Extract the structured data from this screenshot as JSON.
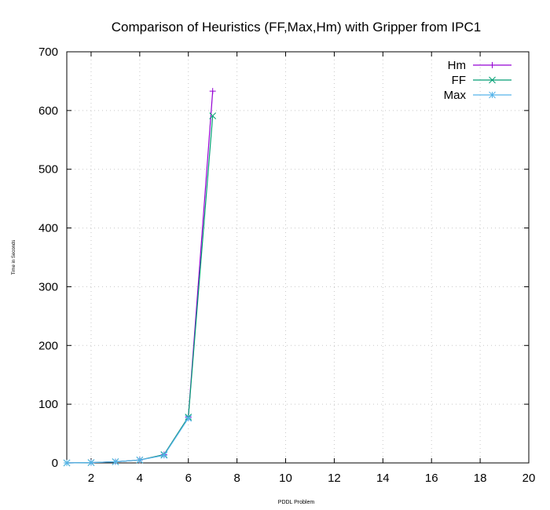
{
  "chart_data": {
    "type": "line",
    "title": "Comparison of Heuristics (FF,Max,Hm) with Gripper from IPC1",
    "xlabel": "PDDL Problem",
    "ylabel": "Time in Seconds",
    "xlim": [
      1,
      20
    ],
    "ylim": [
      0,
      700
    ],
    "xticks": [
      2,
      4,
      6,
      8,
      10,
      12,
      14,
      16,
      18,
      20
    ],
    "yticks": [
      0,
      100,
      200,
      300,
      400,
      500,
      600,
      700
    ],
    "grid": true,
    "legend_position": "top-right",
    "series": [
      {
        "name": "Hm",
        "color": "#9400d3",
        "marker": "plus",
        "x": [
          1,
          2,
          3,
          4,
          5,
          6,
          7
        ],
        "y": [
          0,
          0.5,
          2,
          5,
          14,
          78,
          633
        ]
      },
      {
        "name": "FF",
        "color": "#009e73",
        "marker": "cross",
        "x": [
          1,
          2,
          3,
          4,
          5,
          6,
          7
        ],
        "y": [
          0,
          0.5,
          2,
          5,
          14,
          78,
          591
        ]
      },
      {
        "name": "Max",
        "color": "#56b4e9",
        "marker": "star",
        "x": [
          1,
          2,
          3,
          4,
          5,
          6
        ],
        "y": [
          0,
          0.5,
          2,
          5,
          13,
          76
        ]
      }
    ]
  }
}
